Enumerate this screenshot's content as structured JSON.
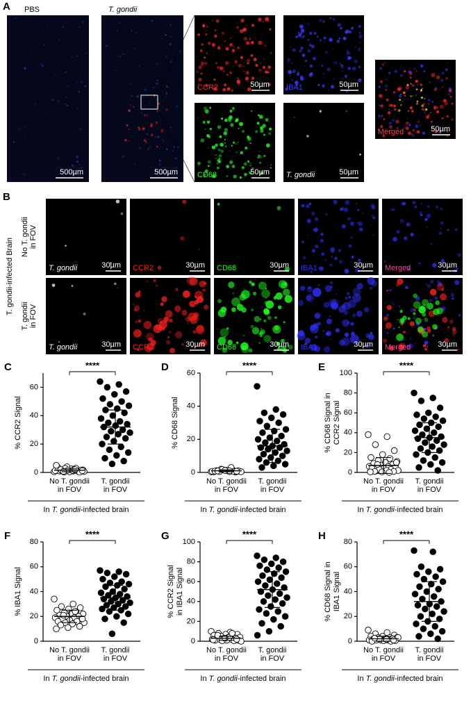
{
  "panel_a": {
    "letter": "A",
    "conditions": [
      "PBS",
      "T. gondii"
    ],
    "overview_scale": "500µm",
    "tiles": [
      {
        "label": "CCR2",
        "color": "#ff2a2a",
        "scale": "50µm"
      },
      {
        "label": "IBA1",
        "color": "#3a3aff",
        "scale": "50µm"
      },
      {
        "label": "CD68",
        "color": "#2aff2a",
        "scale": "50µm"
      },
      {
        "label": "T. gondii",
        "color": "#ffffff",
        "scale": "50µm"
      },
      {
        "label": "Merged",
        "color": "#ff4040",
        "scale": "50µm"
      }
    ]
  },
  "panel_b": {
    "letter": "B",
    "side_label": "T. gondii-infected Brain",
    "rows": [
      [
        "No T. gondii",
        "in FOV"
      ],
      [
        "T. gondii",
        "in FOV"
      ]
    ],
    "channels": [
      {
        "label": "T. gondii",
        "color": "#ffffff"
      },
      {
        "label": "CCR2",
        "color": "#ff2020"
      },
      {
        "label": "CD68",
        "color": "#20ff20"
      },
      {
        "label": "IBA1",
        "color": "#3030ff"
      },
      {
        "label": "Merged",
        "color": "#ff40a0"
      }
    ],
    "scale": "30µm"
  },
  "chart_data": [
    {
      "type": "strip",
      "letter": "C",
      "ylabel": [
        "% CCR2 Signal"
      ],
      "ylim": [
        0,
        70
      ],
      "yticks": [
        0,
        20,
        40,
        60
      ],
      "categories": [
        [
          "No T. gondii",
          "in FOV"
        ],
        [
          "T. gondii",
          "in FOV"
        ]
      ],
      "significance": "****",
      "group_label": [
        "In ",
        "T. gondii",
        "-infected brain"
      ],
      "groups": [
        {
          "fill": "#ffffff",
          "mean": 1.5,
          "sd": 1,
          "values": [
            0.5,
            1,
            1.2,
            0.8,
            2,
            1.5,
            3,
            0.3,
            1.8,
            2.5,
            1,
            0.6,
            4,
            1.3,
            2.2,
            0.9,
            1.7,
            0.4,
            3.5,
            1.1,
            2.8,
            0.7,
            1.4,
            2,
            0.2,
            1.6,
            5,
            1.9,
            0.8,
            1.2
          ]
        },
        {
          "fill": "#000000",
          "mean": 32,
          "sd": 12,
          "values": [
            64,
            62,
            60,
            57,
            55,
            52,
            50,
            48,
            47,
            45,
            44,
            42,
            40,
            38,
            36,
            35,
            34,
            33,
            32,
            30,
            29,
            28,
            27,
            25,
            24,
            22,
            20,
            18,
            16,
            14,
            12,
            10,
            8,
            6
          ]
        }
      ]
    },
    {
      "type": "strip",
      "letter": "D",
      "ylabel": [
        "% CD68 Signal"
      ],
      "ylim": [
        0,
        60
      ],
      "yticks": [
        0,
        20,
        40,
        60
      ],
      "categories": [
        [
          "No T. gondii",
          "in FOV"
        ],
        [
          "T. gondii",
          "in FOV"
        ]
      ],
      "significance": "****",
      "group_label": [
        "In ",
        "T. gondii",
        "-infected brain"
      ],
      "groups": [
        {
          "fill": "#ffffff",
          "mean": 1,
          "sd": 0.6,
          "values": [
            0.3,
            0.5,
            1,
            0.8,
            1.2,
            0.4,
            1.5,
            2,
            0.6,
            0.9,
            1.1,
            0.2,
            1.4,
            0.7,
            3,
            0.5,
            1,
            1.3,
            0.8,
            0.6,
            1.8,
            0.4,
            1,
            0.9,
            0.7,
            1.2
          ]
        },
        {
          "fill": "#000000",
          "mean": 16,
          "sd": 10,
          "values": [
            52,
            38,
            36,
            35,
            33,
            31,
            30,
            28,
            26,
            25,
            24,
            22,
            21,
            20,
            19,
            18,
            17,
            16,
            15,
            15,
            14,
            13,
            12,
            11,
            10,
            9,
            8,
            7,
            6,
            5,
            4,
            3
          ]
        }
      ]
    },
    {
      "type": "strip",
      "letter": "E",
      "ylabel": [
        "% CD68 Signal in",
        "CCR2 Signal"
      ],
      "ylim": [
        0,
        100
      ],
      "yticks": [
        0,
        20,
        40,
        60,
        80,
        100
      ],
      "categories": [
        [
          "No T. gondii",
          "in FOV"
        ],
        [
          "T. gondii",
          "in FOV"
        ]
      ],
      "significance": "****",
      "group_label": [
        "In ",
        "T. gondii",
        "-infected brain"
      ],
      "groups": [
        {
          "fill": "#ffffff",
          "mean": 7,
          "sd": 8,
          "values": [
            38,
            36,
            28,
            22,
            18,
            15,
            14,
            12,
            11,
            10,
            9,
            8,
            7,
            6,
            6,
            5,
            5,
            4,
            4,
            3,
            3,
            2,
            2,
            1,
            1,
            0.5,
            0.5,
            0,
            8,
            10
          ]
        },
        {
          "fill": "#000000",
          "mean": 35,
          "sd": 15,
          "values": [
            80,
            75,
            72,
            65,
            60,
            58,
            56,
            54,
            52,
            50,
            48,
            46,
            44,
            42,
            40,
            38,
            36,
            35,
            34,
            32,
            30,
            28,
            26,
            24,
            22,
            20,
            18,
            15,
            12,
            10,
            8,
            5,
            2
          ]
        }
      ]
    },
    {
      "type": "strip",
      "letter": "F",
      "ylabel": [
        "% IBA1 Signal"
      ],
      "ylim": [
        0,
        80
      ],
      "yticks": [
        0,
        20,
        40,
        60,
        80
      ],
      "categories": [
        [
          "No T. gondii",
          "in FOV"
        ],
        [
          "T. gondii",
          "in FOV"
        ]
      ],
      "significance": "****",
      "group_label": [
        "In ",
        "T. gondii",
        "-infected brain"
      ],
      "groups": [
        {
          "fill": "#ffffff",
          "mean": 20,
          "sd": 5,
          "values": [
            34,
            30,
            28,
            27,
            26,
            25,
            24,
            23,
            22,
            22,
            21,
            20,
            20,
            19,
            19,
            18,
            18,
            17,
            16,
            16,
            15,
            15,
            14,
            13,
            12,
            11,
            10,
            24,
            21,
            18
          ]
        },
        {
          "fill": "#000000",
          "mean": 35,
          "sd": 10,
          "values": [
            57,
            56,
            55,
            54,
            52,
            50,
            48,
            47,
            46,
            45,
            44,
            42,
            40,
            39,
            38,
            37,
            36,
            35,
            34,
            33,
            32,
            31,
            30,
            29,
            28,
            27,
            26,
            25,
            24,
            22,
            20,
            18,
            15,
            6
          ]
        }
      ]
    },
    {
      "type": "strip",
      "letter": "G",
      "ylabel": [
        "% CCR2 Signal",
        "in IBA1 Signal"
      ],
      "ylim": [
        0,
        100
      ],
      "yticks": [
        0,
        20,
        40,
        60,
        80,
        100
      ],
      "categories": [
        [
          "No T. gondii",
          "in FOV"
        ],
        [
          "T. gondii",
          "in FOV"
        ]
      ],
      "significance": "****",
      "group_label": [
        "In ",
        "T. gondii",
        "-infected brain"
      ],
      "groups": [
        {
          "fill": "#ffffff",
          "mean": 3,
          "sd": 2,
          "values": [
            10,
            9,
            8,
            7,
            7,
            6,
            5,
            5,
            4,
            4,
            3,
            3,
            3,
            2,
            2,
            2,
            1,
            1,
            1,
            0.5,
            0.5,
            0,
            4,
            6,
            2,
            3,
            1.5,
            8
          ]
        },
        {
          "fill": "#000000",
          "mean": 52,
          "sd": 18,
          "values": [
            86,
            84,
            82,
            80,
            78,
            76,
            74,
            72,
            70,
            68,
            66,
            64,
            62,
            60,
            58,
            56,
            54,
            52,
            50,
            48,
            46,
            44,
            42,
            40,
            38,
            35,
            32,
            30,
            28,
            25,
            22,
            18,
            15,
            10,
            6
          ]
        }
      ]
    },
    {
      "type": "strip",
      "letter": "H",
      "ylabel": [
        "% CD68 Signal in",
        "IBA1 Signal"
      ],
      "ylim": [
        0,
        80
      ],
      "yticks": [
        0,
        20,
        40,
        60,
        80
      ],
      "categories": [
        [
          "No T. gondii",
          "in FOV"
        ],
        [
          "T. gondii",
          "in FOV"
        ]
      ],
      "significance": "****",
      "group_label": [
        "In ",
        "T. gondii",
        "-infected brain"
      ],
      "groups": [
        {
          "fill": "#ffffff",
          "mean": 2,
          "sd": 2,
          "values": [
            9,
            7,
            6,
            5,
            4,
            4,
            3,
            3,
            3,
            2,
            2,
            2,
            1,
            1,
            1,
            1,
            0.5,
            0.5,
            0,
            0,
            2,
            3,
            1.5,
            2.5,
            1
          ]
        },
        {
          "fill": "#000000",
          "mean": 32,
          "sd": 16,
          "values": [
            73,
            72,
            60,
            58,
            56,
            54,
            52,
            50,
            48,
            46,
            44,
            42,
            40,
            38,
            36,
            34,
            32,
            30,
            29,
            28,
            26,
            24,
            22,
            20,
            18,
            16,
            14,
            12,
            10,
            8,
            6,
            4,
            2
          ]
        }
      ]
    }
  ]
}
